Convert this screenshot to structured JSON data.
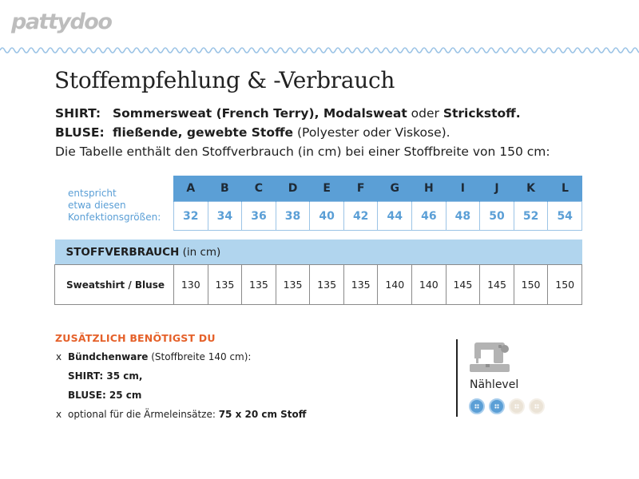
{
  "logo": {
    "text": "pattydoo"
  },
  "title": "Stoffempfehlung & -Verbrauch",
  "fabric": {
    "shirt_label": "SHIRT:",
    "shirt_part1": "Sommersweat (French Terry), Modalsweat",
    "shirt_part2": " oder ",
    "shirt_part3": "Strickstoff.",
    "bluse_label": "BLUSE:",
    "bluse_part1": "fließende, gewebte Stoffe",
    "bluse_part2": " (Polyester oder Viskose).",
    "table_note": "Die Tabelle enthält den Stoffverbrauch (in cm) bei einer Stoffbreite von 150 cm:"
  },
  "sizes": {
    "label_line1": "entspricht",
    "label_line2": "etwa diesen",
    "label_line3": "Konfektionsgrößen:",
    "letters": [
      "A",
      "B",
      "C",
      "D",
      "E",
      "F",
      "G",
      "H",
      "I",
      "J",
      "K",
      "L"
    ],
    "numbers": [
      "32",
      "34",
      "36",
      "38",
      "40",
      "42",
      "44",
      "46",
      "48",
      "50",
      "52",
      "54"
    ]
  },
  "consumption": {
    "header_bold": "STOFFVERBRAUCH",
    "header_unit": " (in cm)",
    "row_label": "Sweatshirt / Bluse",
    "values": [
      "130",
      "135",
      "135",
      "135",
      "135",
      "135",
      "140",
      "140",
      "145",
      "145",
      "150",
      "150"
    ]
  },
  "extras": {
    "heading": "ZUSÄTZLICH BENÖTIGST DU",
    "bullet": "x",
    "item1_bold": "Bündchenware",
    "item1_rest": " (Stoffbreite 140 cm):",
    "shirt": "SHIRT: 35 cm,",
    "bluse": "BLUSE: 25 cm",
    "item2_rest": "optional für die Ärmeleinsätze: ",
    "item2_bold": "75 x 20 cm Stoff"
  },
  "sewing_level": {
    "label": "Nählevel",
    "level": 2,
    "max": 4,
    "icon": "sewing-machine-icon",
    "colors": {
      "active": "#5b9fd6",
      "inactive": "#ebe3d6"
    }
  },
  "colors": {
    "accent_blue": "#5b9fd6",
    "light_blue": "#b1d5ee",
    "orange": "#e5612a",
    "wave": "#9cc4e6"
  }
}
